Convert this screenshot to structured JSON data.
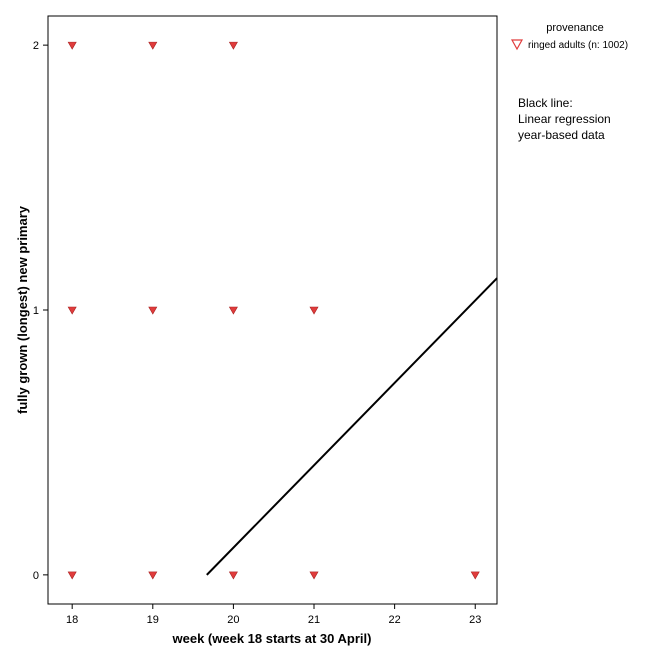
{
  "chart_data": {
    "type": "scatter",
    "xlabel": "week (week 18 starts at 30 April)",
    "ylabel": "fully grown (longest) new primary",
    "xlim": [
      17.7,
      23.27
    ],
    "ylim": [
      -0.11,
      2.11
    ],
    "x_ticks": [
      18,
      19,
      20,
      21,
      22,
      23
    ],
    "y_ticks": [
      0,
      1,
      2
    ],
    "grid": false,
    "legend": {
      "title": "provenance",
      "position": "top-right",
      "entries": [
        {
          "label": "ringed adults (n: 1002)",
          "marker": "triangle-down",
          "color": "#e03c3c"
        }
      ]
    },
    "series": [
      {
        "name": "ringed adults (n: 1002)",
        "marker": "triangle-down",
        "color": "#e03c3c",
        "points": [
          {
            "x": 18,
            "y": 2
          },
          {
            "x": 19,
            "y": 2
          },
          {
            "x": 20,
            "y": 2
          },
          {
            "x": 18,
            "y": 1
          },
          {
            "x": 19,
            "y": 1
          },
          {
            "x": 20,
            "y": 1
          },
          {
            "x": 21,
            "y": 1
          },
          {
            "x": 18,
            "y": 0
          },
          {
            "x": 19,
            "y": 0
          },
          {
            "x": 20,
            "y": 0
          },
          {
            "x": 21,
            "y": 0
          },
          {
            "x": 23,
            "y": 0
          }
        ]
      }
    ],
    "regression_line": {
      "color": "#000000",
      "x": [
        19.67,
        23.27
      ],
      "y": [
        0.0,
        1.12
      ]
    },
    "annotation": [
      "Black line:",
      "Linear regression",
      "year-based data"
    ]
  }
}
